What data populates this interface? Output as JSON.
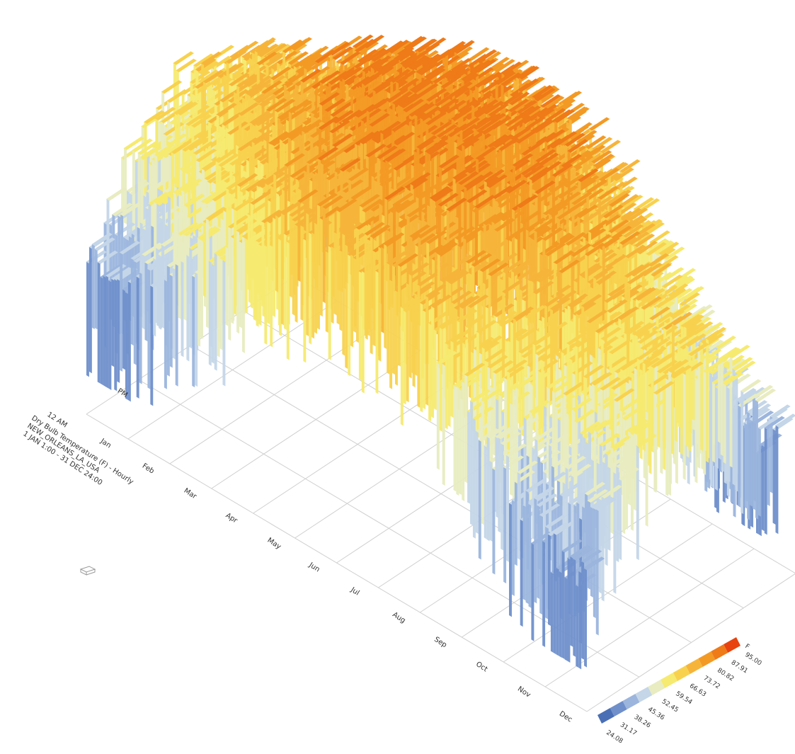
{
  "chart_data": {
    "type": "3d-surface",
    "title_lines": [
      "Dry Bulb Temperature (F) - Hourly",
      "NEW_ORLEANS_LA_USA",
      "1 JAN 1:00 - 31 DEC 24:00"
    ],
    "months": [
      "Jan",
      "Feb",
      "Mar",
      "Apr",
      "May",
      "Jun",
      "Jul",
      "Aug",
      "Sep",
      "Oct",
      "Nov",
      "Dec"
    ],
    "hour_labels": [
      "12 AM",
      "PM"
    ],
    "monthly_temperature_range_f": [
      {
        "month": "Jan",
        "min": 31,
        "max": 74
      },
      {
        "month": "Feb",
        "min": 35,
        "max": 78
      },
      {
        "month": "Mar",
        "min": 43,
        "max": 82
      },
      {
        "month": "Apr",
        "min": 53,
        "max": 86
      },
      {
        "month": "May",
        "min": 63,
        "max": 91
      },
      {
        "month": "Jun",
        "min": 71,
        "max": 95
      },
      {
        "month": "Jul",
        "min": 73,
        "max": 95
      },
      {
        "month": "Aug",
        "min": 73,
        "max": 94
      },
      {
        "month": "Sep",
        "min": 67,
        "max": 92
      },
      {
        "month": "Oct",
        "min": 53,
        "max": 88
      },
      {
        "month": "Nov",
        "min": 40,
        "max": 82
      },
      {
        "month": "Dec",
        "min": 28,
        "max": 76
      }
    ],
    "legend": {
      "unit": "F",
      "values": [
        "24.08",
        "31.17",
        "38.26",
        "45.36",
        "52.45",
        "59.54",
        "66.63",
        "73.72",
        "80.82",
        "87.91",
        "95.00"
      ],
      "colors": [
        "#4a6fb5",
        "#6f8fcb",
        "#9bb5dd",
        "#c4d6e8",
        "#e8ecc0",
        "#f6ea70",
        "#f8d24e",
        "#f6b53a",
        "#f39a25",
        "#ef7a18",
        "#e8420e"
      ]
    }
  },
  "ui": {
    "icon": "disk-icon"
  }
}
